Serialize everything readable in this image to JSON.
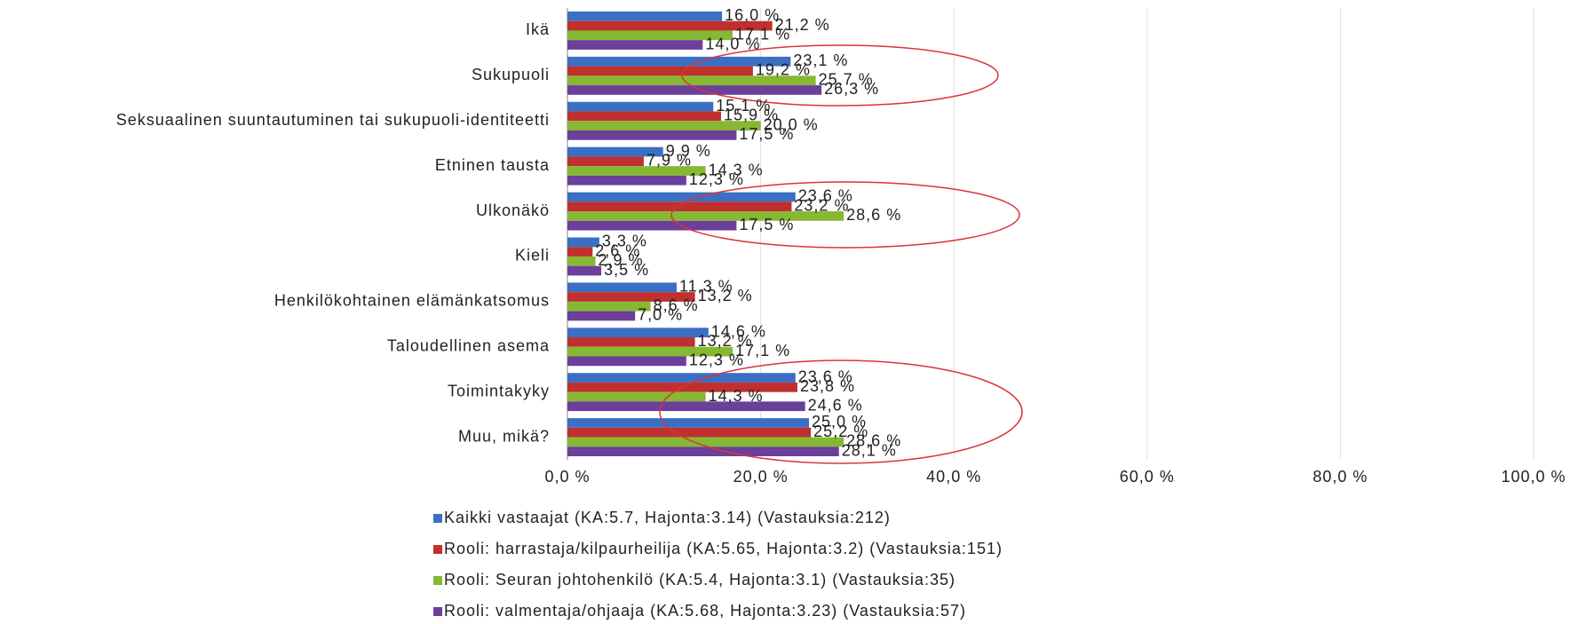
{
  "chart_data": {
    "type": "hbar",
    "categories": [
      "Ikä",
      "Sukupuoli",
      "Seksuaalinen suuntautuminen tai sukupuoli-identiteetti",
      "Etninen tausta",
      "Ulkonäkö",
      "Kieli",
      "Henkilökohtainen elämänkatsomus",
      "Taloudellinen asema",
      "Toimintakyky",
      "Muu, mikä?"
    ],
    "series": [
      {
        "name": "Kaikki vastaajat (KA:5.7, Hajonta:3.14) (Vastauksia:212)",
        "color": "#3a6fc4",
        "values": [
          16.0,
          23.1,
          15.1,
          9.9,
          23.6,
          3.3,
          11.3,
          14.6,
          23.6,
          25.0
        ],
        "value_labels": [
          "16,0 %",
          "23,1 %",
          "15,1 %",
          "9,9 %",
          "23,6 %",
          "3,3 %",
          "11,3 %",
          "14,6 %",
          "23,6 %",
          "25,0 %"
        ]
      },
      {
        "name": "Rooli: harrastaja/kilpaurheilija (KA:5.65, Hajonta:3.2) (Vastauksia:151)",
        "color": "#c0302e",
        "values": [
          21.2,
          19.2,
          15.9,
          7.9,
          23.2,
          2.6,
          13.2,
          13.2,
          23.8,
          25.2
        ],
        "value_labels": [
          "21,2 %",
          "19,2 %",
          "15,9 %",
          "7,9 %",
          "23,2 %",
          "2,6 %",
          "13,2 %",
          "13,2 %",
          "23,8 %",
          "25,2 %"
        ]
      },
      {
        "name": "Rooli: Seuran johtohenkilö (KA:5.4, Hajonta:3.1) (Vastauksia:35)",
        "color": "#86b833",
        "values": [
          17.1,
          25.7,
          20.0,
          14.3,
          28.6,
          2.9,
          8.6,
          17.1,
          14.3,
          28.6
        ],
        "value_labels": [
          "17,1 %",
          "25,7 %",
          "20,0 %",
          "14,3 %",
          "28,6 %",
          "2,9 %",
          "8,6 %",
          "17,1 %",
          "14,3 %",
          "28,6 %"
        ]
      },
      {
        "name": "Rooli: valmentaja/ohjaaja (KA:5.68, Hajonta:3.23) (Vastauksia:57)",
        "color": "#6b3f9a",
        "values": [
          14.0,
          26.3,
          17.5,
          12.3,
          17.5,
          3.5,
          7.0,
          12.3,
          24.6,
          28.1
        ],
        "value_labels": [
          "14,0 %",
          "26,3 %",
          "17,5 %",
          "12,3 %",
          "17,5 %",
          "3,5 %",
          "7,0 %",
          "12,3 %",
          "24,6 %",
          "28,1 %"
        ]
      }
    ],
    "xlim": [
      0,
      100
    ],
    "xticks": [
      {
        "value": 0,
        "label": "0,0 %"
      },
      {
        "value": 20,
        "label": "20,0 %"
      },
      {
        "value": 40,
        "label": "40,0 %"
      },
      {
        "value": 60,
        "label": "60,0 %"
      },
      {
        "value": 80,
        "label": "80,0 %"
      },
      {
        "value": 100,
        "label": "100,0 %"
      }
    ],
    "grid": true
  }
}
